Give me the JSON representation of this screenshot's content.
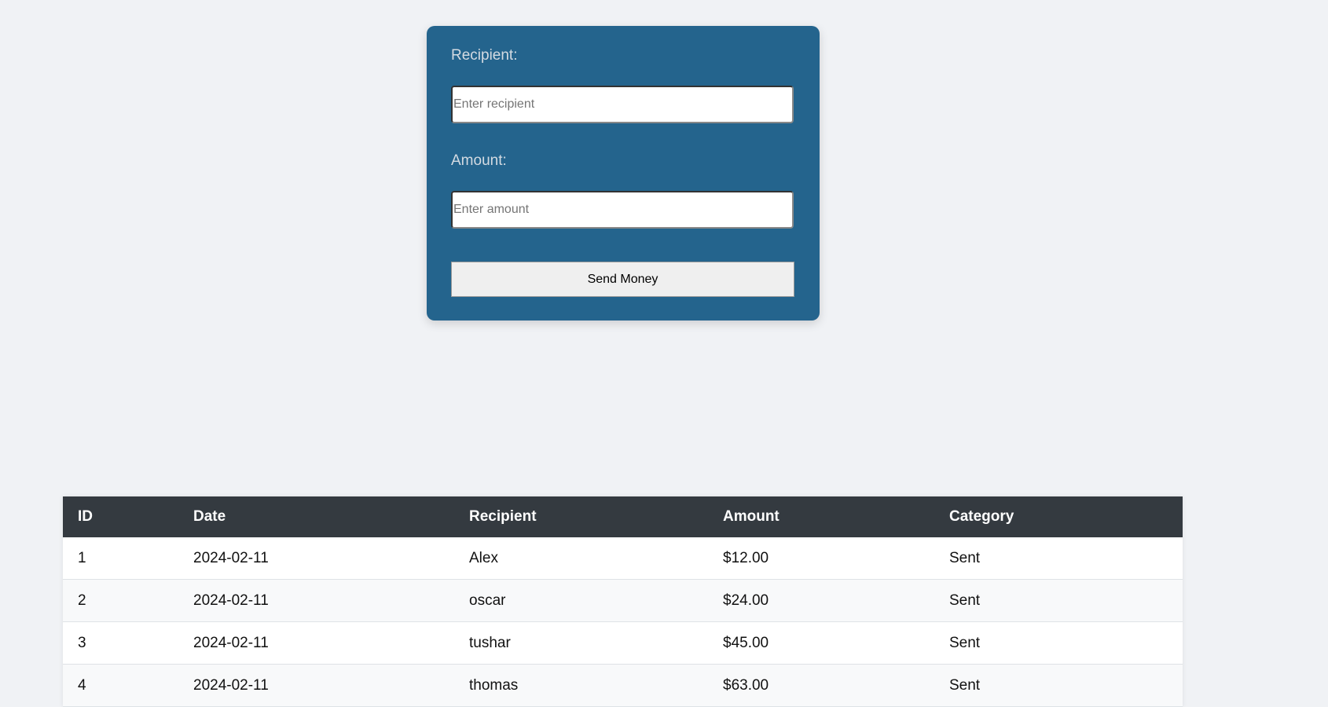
{
  "form": {
    "recipient_label": "Recipient:",
    "recipient_placeholder": "Enter recipient",
    "amount_label": "Amount:",
    "amount_placeholder": "Enter amount",
    "submit_label": "Send Money",
    "card_color": "#24648d"
  },
  "table": {
    "headers": [
      "ID",
      "Date",
      "Recipient",
      "Amount",
      "Category"
    ],
    "rows": [
      [
        "1",
        "2024-02-11",
        "Alex",
        "$12.00",
        "Sent"
      ],
      [
        "2",
        "2024-02-11",
        "oscar",
        "$24.00",
        "Sent"
      ],
      [
        "3",
        "2024-02-11",
        "tushar",
        "$45.00",
        "Sent"
      ],
      [
        "4",
        "2024-02-11",
        "thomas",
        "$63.00",
        "Sent"
      ]
    ]
  }
}
